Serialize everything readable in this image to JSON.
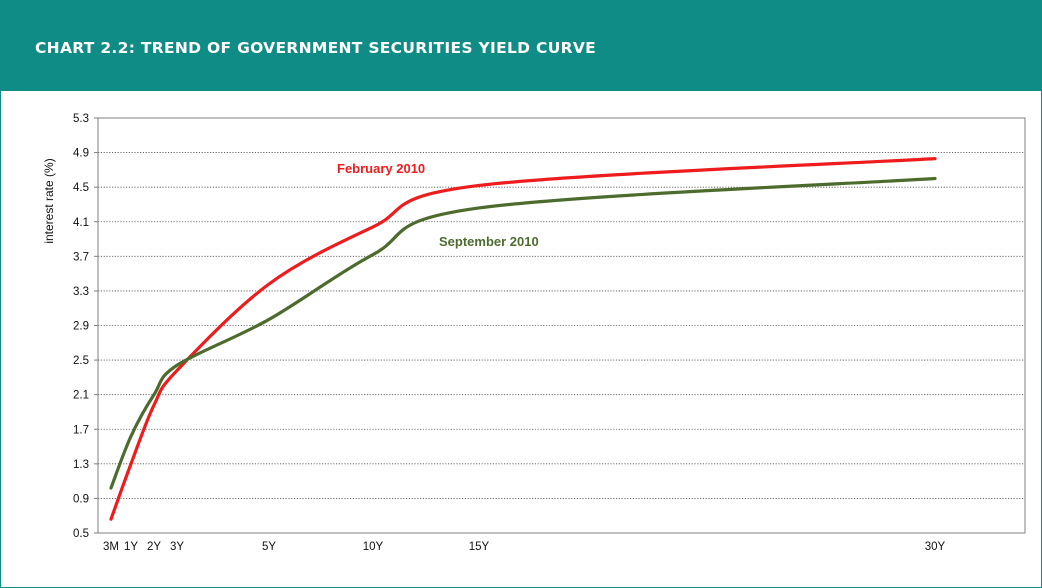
{
  "header": {
    "title": "CHART 2.2: TREND OF GOVERNMENT SECURITIES YIELD CURVE"
  },
  "chart_data": {
    "type": "line",
    "ylabel": "interest rate (%)",
    "ylim": [
      0.5,
      5.3
    ],
    "yticks": [
      0.5,
      0.9,
      1.3,
      1.7,
      2.1,
      2.5,
      2.9,
      3.3,
      3.7,
      4.1,
      4.5,
      4.9,
      5.3
    ],
    "xtick_labels": [
      "3M",
      "1Y",
      "2Y",
      "3Y",
      "5Y",
      "10Y",
      "15Y",
      "30Y"
    ],
    "grid": "horizontal-dotted",
    "series": [
      {
        "name": "February 2010",
        "color": "#ee1c1c",
        "points": [
          [
            "3M",
            0.66
          ],
          [
            "1Y",
            1.3
          ],
          [
            "2Y",
            1.98
          ],
          [
            "3Y",
            2.38
          ],
          [
            "5Y",
            3.38
          ],
          [
            "10Y",
            4.04
          ],
          [
            "15Y",
            4.52
          ],
          [
            "30Y",
            4.83
          ]
        ]
      },
      {
        "name": "September 2010",
        "color": "#4e6b2e",
        "points": [
          [
            "3M",
            1.02
          ],
          [
            "1Y",
            1.62
          ],
          [
            "2Y",
            2.1
          ],
          [
            "3Y",
            2.44
          ],
          [
            "5Y",
            2.97
          ],
          [
            "10Y",
            3.72
          ],
          [
            "15Y",
            4.26
          ],
          [
            "30Y",
            4.6
          ]
        ]
      }
    ]
  }
}
